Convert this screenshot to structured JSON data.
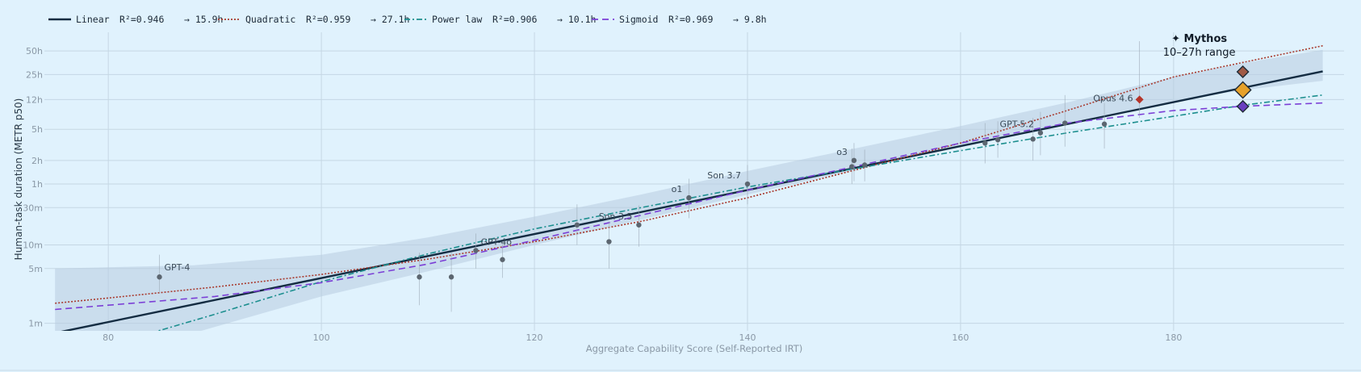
{
  "chart_data": {
    "type": "scatter",
    "title": "",
    "xlabel": "Aggregate Capability Score (Self-Reported IRT)",
    "ylabel": "Human-task duration (METR p50)",
    "x_scale": "linear",
    "y_scale": "log",
    "xlim": [
      74,
      196
    ],
    "ylim_minutes": [
      0.8,
      5200
    ],
    "x_ticks": [
      80,
      100,
      120,
      140,
      160,
      180
    ],
    "y_ticks": [
      {
        "minutes": 1,
        "label": "1m"
      },
      {
        "minutes": 5,
        "label": "5m"
      },
      {
        "minutes": 10,
        "label": "10m"
      },
      {
        "minutes": 30,
        "label": "30m"
      },
      {
        "minutes": 60,
        "label": "1h"
      },
      {
        "minutes": 120,
        "label": "2h"
      },
      {
        "minutes": 300,
        "label": "5h"
      },
      {
        "minutes": 720,
        "label": "12h"
      },
      {
        "minutes": 1500,
        "label": "25h"
      },
      {
        "minutes": 3000,
        "label": "50h"
      }
    ],
    "grid": true,
    "legend_position": "top-left, outside",
    "legend": [
      {
        "name": "Linear",
        "r2": "R²=0.946",
        "proj": "→ 15.9h",
        "color": "#142c42",
        "dash": "",
        "width": 2.4
      },
      {
        "name": "Quadratic",
        "r2": "R²=0.959",
        "proj": "→ 27.1h",
        "color": "#a83a2e",
        "dash": "2,2",
        "width": 1.6
      },
      {
        "name": "Power law",
        "r2": "R²=0.906",
        "proj": "→ 10.1h",
        "color": "#1d8f8f",
        "dash": "7,3,2,3",
        "width": 1.6
      },
      {
        "name": "Sigmoid",
        "r2": "R²=0.969",
        "proj": "→ 9.8h",
        "color": "#7b3fd6",
        "dash": "8,5",
        "width": 1.6
      }
    ],
    "fits": [
      {
        "name": "Linear",
        "x": [
          75,
          194
        ],
        "y": [
          0.75,
          1650
        ]
      },
      {
        "name": "Quadratic",
        "x": [
          75,
          80,
          90,
          100,
          110,
          120,
          130,
          140,
          150,
          160,
          170,
          180,
          194
        ],
        "y": [
          1.8,
          2.1,
          2.9,
          4.2,
          6.6,
          11,
          20,
          40,
          90,
          200,
          520,
          1400,
          3500
        ]
      },
      {
        "name": "Power law",
        "x": [
          84,
          90,
          100,
          110,
          120,
          130,
          140,
          150,
          160,
          170,
          180,
          186.5,
          194
        ],
        "y": [
          0.75,
          1.3,
          3.4,
          7.7,
          16,
          30,
          55,
          94,
          160,
          270,
          440,
          608,
          820
        ]
      },
      {
        "name": "Sigmoid",
        "x": [
          75,
          80,
          90,
          100,
          110,
          120,
          130,
          140,
          150,
          160,
          170,
          180,
          186.5,
          194
        ],
        "y": [
          1.5,
          1.7,
          2.2,
          3.3,
          5.7,
          11.5,
          24,
          50,
          100,
          200,
          360,
          520,
          590,
          650
        ]
      }
    ],
    "band": {
      "x": [
        75,
        88,
        100,
        110,
        120,
        130,
        140,
        150,
        160,
        170,
        180,
        186.5,
        194
      ],
      "lo": [
        0.15,
        0.75,
        2.2,
        4.6,
        10,
        21,
        44,
        90,
        180,
        360,
        680,
        950,
        1250
      ],
      "hi": [
        5,
        5.5,
        7.5,
        12.5,
        23,
        44,
        88,
        170,
        330,
        660,
        1400,
        2100,
        3100
      ]
    },
    "points": [
      {
        "x": 84.8,
        "y": 3.9,
        "lo": 2.4,
        "hi": 7.5,
        "label": "GPT-4"
      },
      {
        "x": 109.2,
        "y": 3.9,
        "lo": 1.7,
        "hi": 8
      },
      {
        "x": 112.2,
        "y": 3.9,
        "lo": 1.4,
        "hi": 8
      },
      {
        "x": 117.0,
        "y": 6.5,
        "lo": 3.8,
        "hi": 11
      },
      {
        "x": 114.5,
        "y": 8.5,
        "lo": 5,
        "hi": 14,
        "label": "GPT-4o"
      },
      {
        "x": 124.0,
        "y": 18,
        "lo": 10,
        "hi": 33
      },
      {
        "x": 127.0,
        "y": 11,
        "lo": 5,
        "hi": 20
      },
      {
        "x": 129.8,
        "y": 18,
        "lo": 9.5,
        "hi": 32,
        "label": "Son 3.5"
      },
      {
        "x": 134.5,
        "y": 40,
        "lo": 22,
        "hi": 70,
        "label": "o1"
      },
      {
        "x": 140.0,
        "y": 60,
        "lo": 33,
        "hi": 105,
        "label": "Son 3.7"
      },
      {
        "x": 149.8,
        "y": 100,
        "lo": 60,
        "hi": 170
      },
      {
        "x": 150.0,
        "y": 120,
        "lo": 65,
        "hi": 200,
        "label": "o3"
      },
      {
        "x": 151.0,
        "y": 105,
        "lo": 65,
        "hi": 165
      },
      {
        "x": 162.3,
        "y": 200,
        "lo": 110,
        "hi": 360
      },
      {
        "x": 163.5,
        "y": 220,
        "lo": 130,
        "hi": 380
      },
      {
        "x": 166.8,
        "y": 225,
        "lo": 120,
        "hi": 420
      },
      {
        "x": 167.5,
        "y": 270,
        "lo": 140,
        "hi": 500,
        "label": "GPT-5.2"
      },
      {
        "x": 169.8,
        "y": 360,
        "lo": 180,
        "hi": 820
      },
      {
        "x": 173.5,
        "y": 350,
        "lo": 170,
        "hi": 650
      }
    ],
    "highlight": [
      {
        "x": 176.8,
        "y": 720,
        "lo": 420,
        "hi": 4000,
        "label": "Opus 4.6",
        "color": "#b5352a"
      }
    ],
    "mythos": {
      "x": 186.5,
      "label": "✦ Mythos",
      "sublabel": "10–27h range",
      "markers": [
        {
          "y": 1626,
          "color": "#a05a46",
          "size": 7
        },
        {
          "y": 954,
          "color": "#e6a12a",
          "size": 10
        },
        {
          "y": 588,
          "color": "#6a3fc0",
          "size": 7
        }
      ]
    }
  }
}
